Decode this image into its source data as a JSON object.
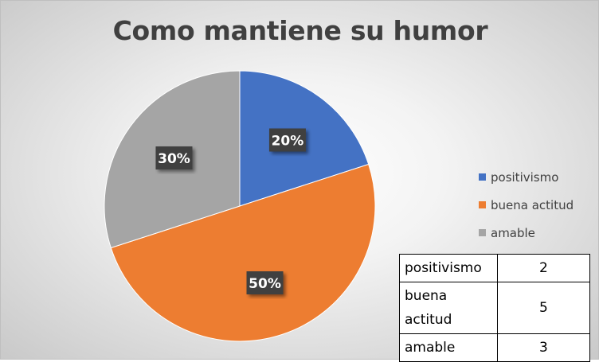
{
  "chart_data": {
    "type": "pie",
    "title": "Como mantiene su humor",
    "categories": [
      "positivismo",
      "buena actitud",
      "amable"
    ],
    "values": [
      2,
      5,
      3
    ],
    "percent_labels": [
      "20%",
      "50%",
      "30%"
    ],
    "colors": [
      "#4472c4",
      "#ed7d31",
      "#a5a5a5"
    ],
    "legend": "right"
  },
  "table": {
    "rows": [
      {
        "category": "positivismo",
        "value": "2"
      },
      {
        "category": "buena actitud",
        "value": "5"
      },
      {
        "category": "amable",
        "value": "3"
      }
    ]
  }
}
